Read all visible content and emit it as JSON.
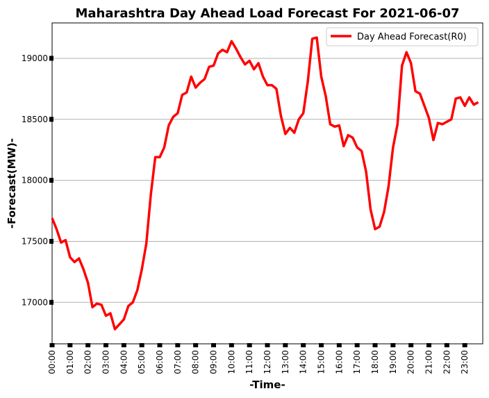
{
  "chart_data": {
    "type": "line",
    "title": "Maharashtra Day Ahead Load Forecast For 2021-06-07",
    "xlabel": "-Time-",
    "ylabel": "-Forecast(MW)-",
    "ylim": [
      16660,
      19290
    ],
    "yticks": [
      17000,
      17500,
      18000,
      18500,
      19000
    ],
    "ytick_labels": [
      "17000",
      "17500",
      "18000",
      "18500",
      "19000"
    ],
    "xtick_labels": [
      "00:00",
      "01:00",
      "02:00",
      "03:00",
      "04:00",
      "05:00",
      "06:00",
      "07:00",
      "08:00",
      "09:00",
      "10:00",
      "11:00",
      "12:00",
      "13:00",
      "14:00",
      "15:00",
      "16:00",
      "17:00",
      "18:00",
      "19:00",
      "20:00",
      "21:00",
      "22:00",
      "23:00"
    ],
    "grid": "horizontal",
    "legend_position": "top-right",
    "points_per_hour": 4,
    "series": [
      {
        "name": "Day Ahead Forecast(R0)",
        "color": "#ff0000",
        "values": [
          17690,
          17600,
          17490,
          17510,
          17370,
          17330,
          17360,
          17270,
          17160,
          16960,
          16990,
          16980,
          16890,
          16910,
          16780,
          16820,
          16860,
          16970,
          17000,
          17100,
          17270,
          17480,
          17880,
          18190,
          18190,
          18270,
          18450,
          18520,
          18550,
          18700,
          18720,
          18850,
          18760,
          18800,
          18830,
          18930,
          18940,
          19040,
          19070,
          19050,
          19140,
          19080,
          19010,
          18950,
          18980,
          18910,
          18960,
          18850,
          18780,
          18780,
          18750,
          18530,
          18380,
          18430,
          18390,
          18500,
          18550,
          18810,
          19160,
          19170,
          18850,
          18690,
          18460,
          18440,
          18450,
          18280,
          18370,
          18350,
          18270,
          18240,
          18070,
          17760,
          17600,
          17620,
          17740,
          17950,
          18270,
          18460,
          18940,
          19050,
          18960,
          18730,
          18710,
          18610,
          18510,
          18330,
          18470,
          18460,
          18480,
          18500,
          18670,
          18680,
          18610,
          18680,
          18620,
          18640
        ]
      }
    ]
  }
}
